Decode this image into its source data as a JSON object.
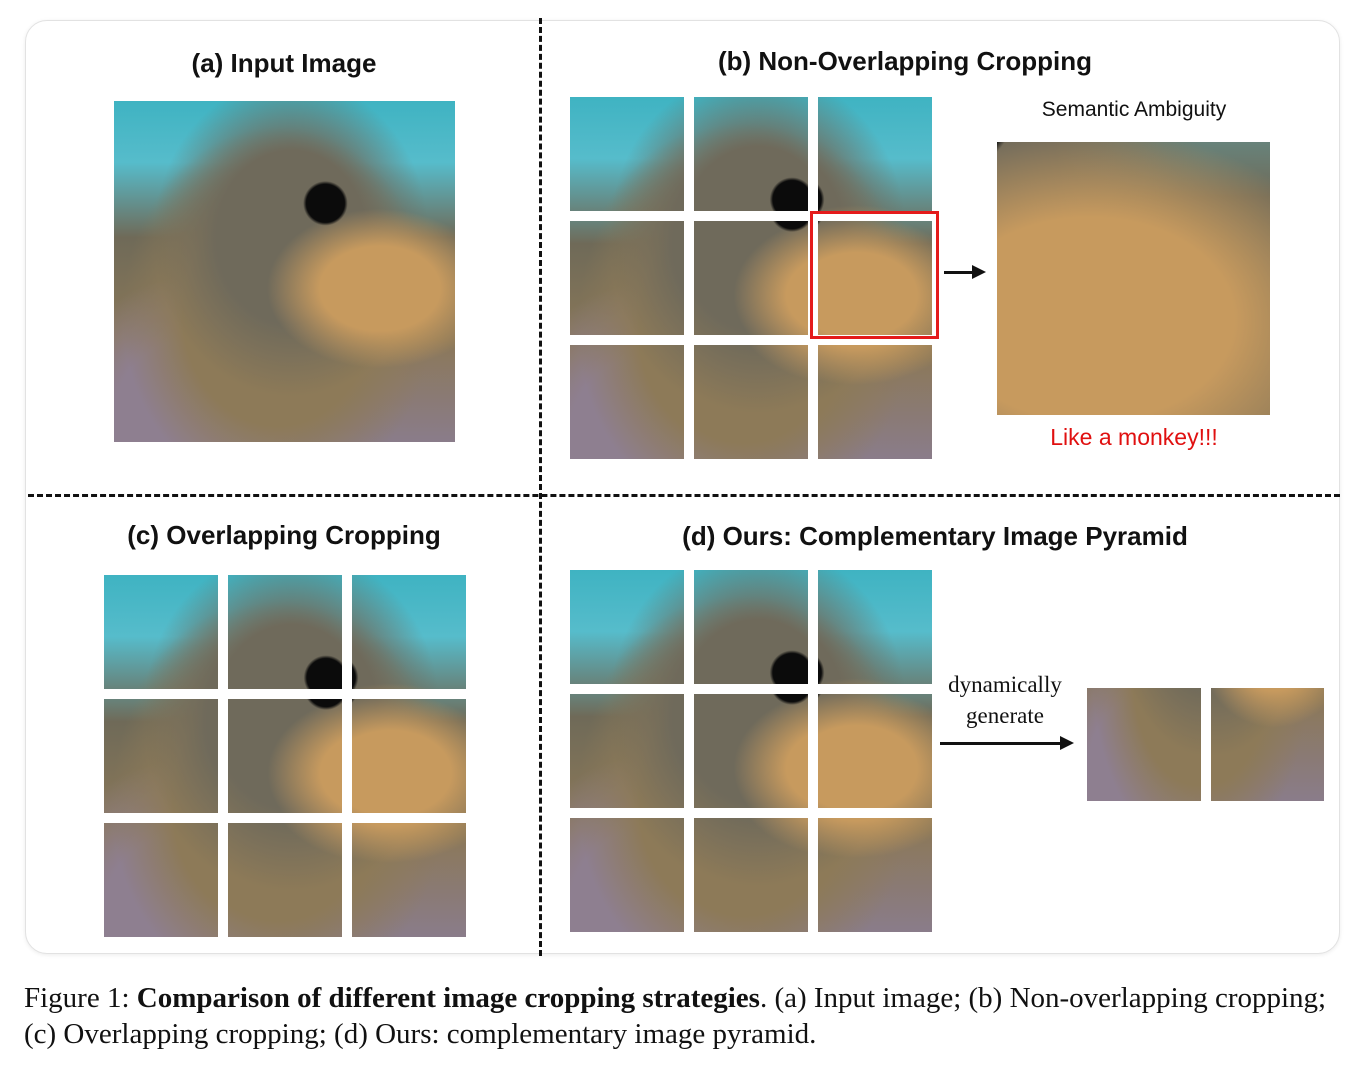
{
  "figure": {
    "panel_a": {
      "title": "(a) Input Image"
    },
    "panel_b": {
      "title": "(b) Non-Overlapping Cropping",
      "zoom_label": "Semantic Ambiguity",
      "zoom_remark": "Like a monkey!!!",
      "remark_color": "#e01010"
    },
    "panel_c": {
      "title": "(c) Overlapping Cropping"
    },
    "panel_d": {
      "title": "(d) Ours: Complementary Image Pyramid",
      "arrow_label_line1": "dynamically",
      "arrow_label_line2": "generate"
    },
    "highlight_color": "#e41b1b"
  },
  "caption": {
    "prefix": "Figure 1: ",
    "bold": "Comparison of different image cropping strategies",
    "rest": ". (a) Input image; (b) Non-overlapping cropping; (c) Overlapping cropping; (d) Ours: complementary image pyramid."
  }
}
